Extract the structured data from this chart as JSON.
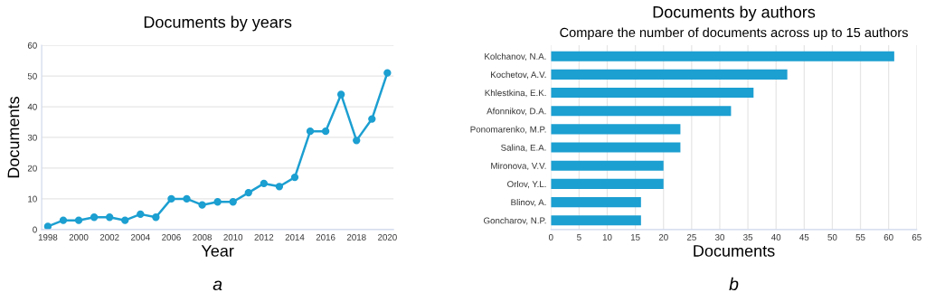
{
  "chart_data": [
    {
      "type": "line",
      "title": "Documents by years",
      "xlabel": "Year",
      "ylabel": "Documents",
      "annotations": [
        "a"
      ],
      "x": [
        1998,
        1999,
        2000,
        2001,
        2002,
        2003,
        2004,
        2005,
        2006,
        2007,
        2008,
        2009,
        2010,
        2011,
        2012,
        2013,
        2014,
        2015,
        2016,
        2017,
        2018,
        2019,
        2020
      ],
      "series": [
        {
          "color": "#1c9fd1",
          "values": [
            1,
            3,
            3,
            4,
            4,
            3,
            5,
            4,
            10,
            10,
            8,
            9,
            9,
            12,
            15,
            14,
            17,
            32,
            32,
            44,
            29,
            36,
            51
          ]
        }
      ],
      "xlim": [
        1997.6,
        2020.4
      ],
      "xticks": [
        1998,
        2000,
        2002,
        2004,
        2006,
        2008,
        2010,
        2012,
        2014,
        2016,
        2018,
        2020
      ],
      "ylim": [
        0,
        60
      ],
      "yticks": [
        0,
        10,
        20,
        30,
        40,
        50,
        60
      ],
      "grid": "y",
      "marker": "circle",
      "line_style": "solid",
      "legend": false
    },
    {
      "type": "bar",
      "orientation": "horizontal",
      "title": "Documents by authors",
      "subtitle": "Compare the number of documents across up to 15 authors",
      "xlabel": "Documents",
      "annotations": [
        "b"
      ],
      "categories": [
        "Kolchanov, N.A.",
        "Kochetov, A.V.",
        "Khlestkina, E.K.",
        "Afonnikov, D.A.",
        "Ponomarenko, M.P.",
        "Salina, E.A.",
        "Mironova, V.V.",
        "Orlov, Y.L.",
        "Blinov, A.",
        "Goncharov, N.P."
      ],
      "series": [
        {
          "color": "#1c9fd1",
          "values": [
            61,
            42,
            36,
            32,
            23,
            23,
            20,
            20,
            16,
            16
          ]
        }
      ],
      "xlim": [
        0,
        65
      ],
      "xticks": [
        0,
        5,
        10,
        15,
        20,
        25,
        30,
        35,
        40,
        45,
        50,
        55,
        60,
        65
      ],
      "grid": "x",
      "legend": false
    }
  ]
}
